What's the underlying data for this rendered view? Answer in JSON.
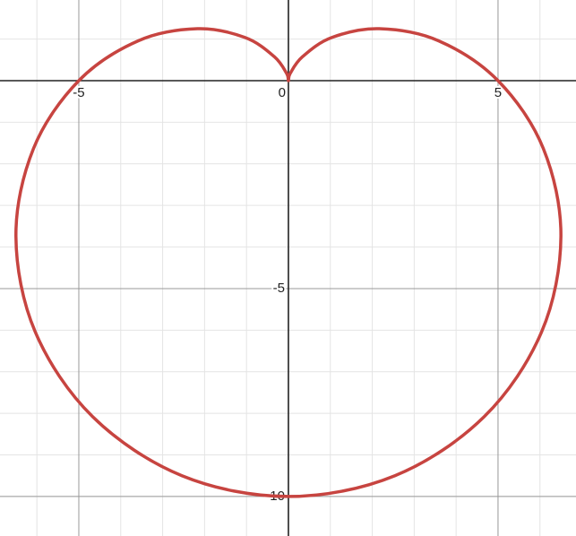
{
  "chart_data": {
    "type": "line",
    "series": [
      {
        "color": "#c74440",
        "x": [
          5,
          3.58,
          2.17,
          1.04,
          0.34,
          0.04,
          0,
          -0.04,
          -0.34,
          -1.04,
          -2.17,
          -3.58,
          -5,
          -6.08,
          -6.5,
          -6.04,
          -4.67,
          -2.54,
          0,
          2.54,
          4.67,
          6.04,
          6.5,
          6.08
        ],
        "values": [
          0,
          0.96,
          1.25,
          1.04,
          0.58,
          0.17,
          0,
          0.17,
          0.58,
          1.04,
          1.25,
          0.96,
          0,
          -1.63,
          -3.75,
          -6.04,
          -8.08,
          -9.5,
          -10,
          -9.5,
          -8.08,
          -6.04,
          -3.75,
          -1.63
        ]
      }
    ],
    "xlim": [
      -6.88,
      6.86
    ],
    "ylim": [
      -10.95,
      1.94
    ],
    "xticks": [
      -5,
      0,
      5
    ],
    "yticks": [
      -10,
      -5
    ],
    "grid": true
  }
}
